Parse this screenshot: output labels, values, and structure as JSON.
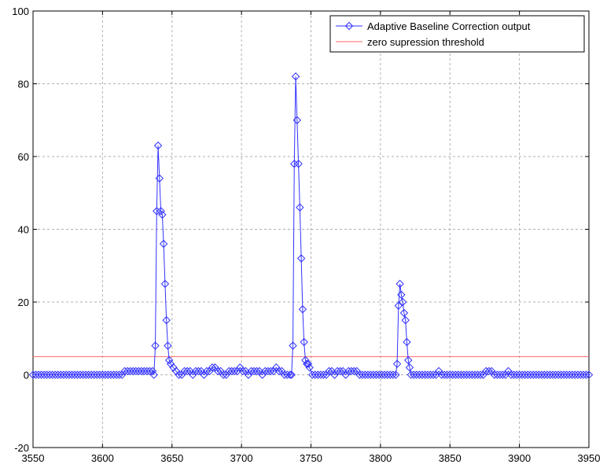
{
  "chart_data": {
    "type": "line",
    "title": "",
    "xlabel": "",
    "ylabel": "",
    "xlim": [
      3550,
      3950
    ],
    "ylim": [
      -20,
      100
    ],
    "grid": true,
    "legend_position": "top-right",
    "x_ticks": [
      "3550",
      "3600",
      "3650",
      "3700",
      "3750",
      "3800",
      "3850",
      "3900",
      "3950"
    ],
    "y_ticks": [
      "-20",
      "0",
      "20",
      "40",
      "60",
      "80",
      "100"
    ],
    "colors": {
      "series": "#3333ff",
      "threshold": "#ff6666",
      "grid": "#b0b0b0"
    },
    "series": [
      {
        "name": "Adaptive Baseline Correction output",
        "marker": "diamond",
        "points": [
          [
            3550,
            0
          ],
          [
            3552,
            0
          ],
          [
            3554,
            0
          ],
          [
            3556,
            0
          ],
          [
            3558,
            0
          ],
          [
            3560,
            0
          ],
          [
            3562,
            0
          ],
          [
            3564,
            0
          ],
          [
            3566,
            0
          ],
          [
            3568,
            0
          ],
          [
            3570,
            0
          ],
          [
            3572,
            0
          ],
          [
            3574,
            0
          ],
          [
            3576,
            0
          ],
          [
            3578,
            0
          ],
          [
            3580,
            0
          ],
          [
            3582,
            0
          ],
          [
            3584,
            0
          ],
          [
            3586,
            0
          ],
          [
            3588,
            0
          ],
          [
            3590,
            0
          ],
          [
            3592,
            0
          ],
          [
            3594,
            0
          ],
          [
            3596,
            0
          ],
          [
            3598,
            0
          ],
          [
            3600,
            0
          ],
          [
            3602,
            0
          ],
          [
            3604,
            0
          ],
          [
            3606,
            0
          ],
          [
            3608,
            0
          ],
          [
            3610,
            0
          ],
          [
            3612,
            0
          ],
          [
            3614,
            0
          ],
          [
            3616,
            1
          ],
          [
            3618,
            1
          ],
          [
            3620,
            1
          ],
          [
            3622,
            1
          ],
          [
            3624,
            1
          ],
          [
            3626,
            1
          ],
          [
            3628,
            1
          ],
          [
            3630,
            1
          ],
          [
            3632,
            1
          ],
          [
            3634,
            1
          ],
          [
            3636,
            1
          ],
          [
            3637,
            0
          ],
          [
            3638,
            8
          ],
          [
            3639,
            45
          ],
          [
            3640,
            63
          ],
          [
            3641,
            54
          ],
          [
            3642,
            45
          ],
          [
            3643,
            44
          ],
          [
            3644,
            36
          ],
          [
            3645,
            25
          ],
          [
            3646,
            15
          ],
          [
            3647,
            8
          ],
          [
            3648,
            4
          ],
          [
            3649,
            3
          ],
          [
            3651,
            2
          ],
          [
            3653,
            1
          ],
          [
            3655,
            0
          ],
          [
            3657,
            0
          ],
          [
            3659,
            1
          ],
          [
            3661,
            1
          ],
          [
            3663,
            1
          ],
          [
            3665,
            0
          ],
          [
            3667,
            1
          ],
          [
            3669,
            1
          ],
          [
            3671,
            1
          ],
          [
            3673,
            0
          ],
          [
            3675,
            1
          ],
          [
            3677,
            1
          ],
          [
            3679,
            2
          ],
          [
            3681,
            2
          ],
          [
            3683,
            1
          ],
          [
            3685,
            1
          ],
          [
            3687,
            0
          ],
          [
            3689,
            0
          ],
          [
            3691,
            1
          ],
          [
            3693,
            1
          ],
          [
            3695,
            1
          ],
          [
            3697,
            1
          ],
          [
            3699,
            2
          ],
          [
            3701,
            1
          ],
          [
            3703,
            1
          ],
          [
            3705,
            0
          ],
          [
            3707,
            1
          ],
          [
            3709,
            1
          ],
          [
            3711,
            1
          ],
          [
            3713,
            1
          ],
          [
            3715,
            0
          ],
          [
            3717,
            1
          ],
          [
            3719,
            1
          ],
          [
            3721,
            1
          ],
          [
            3723,
            1
          ],
          [
            3725,
            2
          ],
          [
            3727,
            1
          ],
          [
            3729,
            1
          ],
          [
            3731,
            0
          ],
          [
            3733,
            0
          ],
          [
            3735,
            0
          ],
          [
            3736,
            0
          ],
          [
            3737,
            8
          ],
          [
            3738,
            58
          ],
          [
            3739,
            82
          ],
          [
            3740,
            70
          ],
          [
            3741,
            58
          ],
          [
            3742,
            46
          ],
          [
            3743,
            32
          ],
          [
            3744,
            18
          ],
          [
            3745,
            9
          ],
          [
            3746,
            4
          ],
          [
            3747,
            3
          ],
          [
            3748,
            3
          ],
          [
            3749,
            2
          ],
          [
            3751,
            0
          ],
          [
            3753,
            0
          ],
          [
            3755,
            0
          ],
          [
            3757,
            0
          ],
          [
            3759,
            0
          ],
          [
            3761,
            0
          ],
          [
            3763,
            1
          ],
          [
            3765,
            1
          ],
          [
            3767,
            0
          ],
          [
            3769,
            1
          ],
          [
            3771,
            1
          ],
          [
            3773,
            1
          ],
          [
            3775,
            0
          ],
          [
            3777,
            1
          ],
          [
            3779,
            1
          ],
          [
            3781,
            1
          ],
          [
            3783,
            1
          ],
          [
            3785,
            0
          ],
          [
            3787,
            0
          ],
          [
            3789,
            0
          ],
          [
            3791,
            0
          ],
          [
            3793,
            0
          ],
          [
            3795,
            0
          ],
          [
            3797,
            0
          ],
          [
            3799,
            0
          ],
          [
            3801,
            0
          ],
          [
            3803,
            0
          ],
          [
            3805,
            0
          ],
          [
            3807,
            0
          ],
          [
            3809,
            0
          ],
          [
            3811,
            0
          ],
          [
            3812,
            3
          ],
          [
            3813,
            19
          ],
          [
            3814,
            25
          ],
          [
            3815,
            22
          ],
          [
            3816,
            20
          ],
          [
            3817,
            17
          ],
          [
            3818,
            15
          ],
          [
            3819,
            9
          ],
          [
            3820,
            4
          ],
          [
            3821,
            2
          ],
          [
            3822,
            0
          ],
          [
            3824,
            0
          ],
          [
            3826,
            0
          ],
          [
            3828,
            0
          ],
          [
            3830,
            0
          ],
          [
            3832,
            0
          ],
          [
            3834,
            0
          ],
          [
            3836,
            0
          ],
          [
            3838,
            0
          ],
          [
            3840,
            0
          ],
          [
            3842,
            1
          ],
          [
            3844,
            0
          ],
          [
            3846,
            0
          ],
          [
            3848,
            0
          ],
          [
            3850,
            0
          ],
          [
            3852,
            0
          ],
          [
            3854,
            0
          ],
          [
            3856,
            0
          ],
          [
            3858,
            0
          ],
          [
            3860,
            0
          ],
          [
            3862,
            0
          ],
          [
            3864,
            0
          ],
          [
            3866,
            0
          ],
          [
            3868,
            0
          ],
          [
            3870,
            0
          ],
          [
            3872,
            0
          ],
          [
            3874,
            0
          ],
          [
            3876,
            1
          ],
          [
            3878,
            1
          ],
          [
            3880,
            1
          ],
          [
            3882,
            0
          ],
          [
            3884,
            0
          ],
          [
            3886,
            0
          ],
          [
            3888,
            0
          ],
          [
            3890,
            0
          ],
          [
            3892,
            1
          ],
          [
            3894,
            0
          ],
          [
            3896,
            0
          ],
          [
            3898,
            0
          ],
          [
            3900,
            0
          ],
          [
            3902,
            0
          ],
          [
            3904,
            0
          ],
          [
            3906,
            0
          ],
          [
            3908,
            0
          ],
          [
            3910,
            0
          ],
          [
            3912,
            0
          ],
          [
            3914,
            0
          ],
          [
            3916,
            0
          ],
          [
            3918,
            0
          ],
          [
            3920,
            0
          ],
          [
            3922,
            0
          ],
          [
            3924,
            0
          ],
          [
            3926,
            0
          ],
          [
            3928,
            0
          ],
          [
            3930,
            0
          ],
          [
            3932,
            0
          ],
          [
            3934,
            0
          ],
          [
            3936,
            0
          ],
          [
            3938,
            0
          ],
          [
            3940,
            0
          ],
          [
            3942,
            0
          ],
          [
            3944,
            0
          ],
          [
            3946,
            0
          ],
          [
            3948,
            0
          ],
          [
            3950,
            0
          ]
        ]
      },
      {
        "name": "zero supression threshold",
        "marker": "none",
        "points": [
          [
            3550,
            5
          ],
          [
            3950,
            5
          ]
        ]
      }
    ]
  }
}
